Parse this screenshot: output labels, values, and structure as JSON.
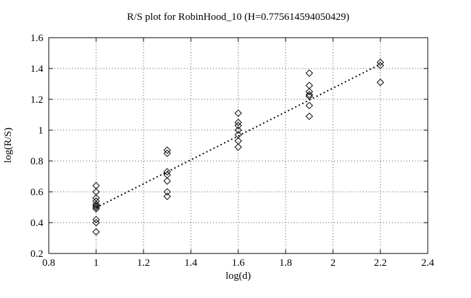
{
  "figure": {
    "background_color": "#ffffff",
    "axis_color": "#000000",
    "grid_color": "#3a3a3a",
    "marker_color": "#000000",
    "trend_color": "#000000"
  },
  "chart_data": {
    "type": "scatter",
    "title": "R/S plot for RobinHood_10 (H=0.775614594050429)",
    "xlabel": "log(d)",
    "ylabel": "log(R/S)",
    "hurst_exponent": 0.775614594050429,
    "xlim": [
      0.8,
      2.4
    ],
    "ylim": [
      0.2,
      1.6
    ],
    "xticks": [
      0.8,
      1,
      1.2,
      1.4,
      1.6,
      1.8,
      2,
      2.2,
      2.4
    ],
    "xtick_labels": [
      "0.8",
      "1",
      "1.2",
      "1.4",
      "1.6",
      "1.8",
      "2",
      "2.2",
      "2.4"
    ],
    "yticks": [
      0.2,
      0.4,
      0.6,
      0.8,
      1,
      1.2,
      1.4,
      1.6
    ],
    "ytick_labels": [
      "0.2",
      "0.4",
      "0.6",
      "0.8",
      "1",
      "1.2",
      "1.4",
      "1.6"
    ],
    "grid": true,
    "legend": "none",
    "marker": "open-diamond",
    "series": [
      {
        "name": "rescaled-range-points",
        "points": [
          [
            1.0,
            0.64
          ],
          [
            1.0,
            0.6
          ],
          [
            1.0,
            0.56
          ],
          [
            1.0,
            0.54
          ],
          [
            1.0,
            0.52
          ],
          [
            1.0,
            0.51
          ],
          [
            1.0,
            0.5
          ],
          [
            1.0,
            0.49
          ],
          [
            1.0,
            0.42
          ],
          [
            1.0,
            0.4
          ],
          [
            1.0,
            0.34
          ],
          [
            1.3,
            0.87
          ],
          [
            1.3,
            0.85
          ],
          [
            1.3,
            0.73
          ],
          [
            1.3,
            0.71
          ],
          [
            1.3,
            0.67
          ],
          [
            1.3,
            0.6
          ],
          [
            1.3,
            0.57
          ],
          [
            1.6,
            1.11
          ],
          [
            1.6,
            1.05
          ],
          [
            1.6,
            1.03
          ],
          [
            1.6,
            1.0
          ],
          [
            1.6,
            0.97
          ],
          [
            1.6,
            0.93
          ],
          [
            1.6,
            0.89
          ],
          [
            1.9,
            1.37
          ],
          [
            1.9,
            1.29
          ],
          [
            1.9,
            1.25
          ],
          [
            1.9,
            1.23
          ],
          [
            1.9,
            1.22
          ],
          [
            1.9,
            1.16
          ],
          [
            1.9,
            1.09
          ],
          [
            2.2,
            1.44
          ],
          [
            2.2,
            1.42
          ],
          [
            2.2,
            1.31
          ]
        ]
      }
    ],
    "trend": {
      "style": "dotted",
      "slope": 0.775614594050429,
      "from": [
        1.0,
        0.497
      ],
      "to": [
        2.2,
        1.428
      ]
    }
  }
}
